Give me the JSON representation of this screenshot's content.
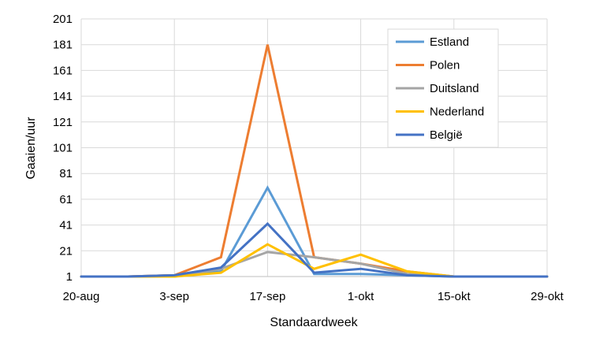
{
  "chart_data": {
    "type": "line",
    "title": "",
    "xlabel": "Standaardweek",
    "ylabel": "Gaaien/uur",
    "categories": [
      "20-aug",
      "27-aug",
      "3-sep",
      "10-sep",
      "17-sep",
      "24-sep",
      "1-okt",
      "8-okt",
      "15-okt",
      "22-okt",
      "29-okt"
    ],
    "x_tick_labels": [
      "20-aug",
      "3-sep",
      "17-sep",
      "1-okt",
      "15-okt",
      "29-okt"
    ],
    "y_ticks": [
      1,
      21,
      41,
      61,
      81,
      101,
      121,
      141,
      161,
      181,
      201
    ],
    "ylim": [
      1,
      201
    ],
    "grid": true,
    "legend_position": "top-right",
    "series": [
      {
        "name": "Estland",
        "color": "#5b9bd5",
        "values": [
          1,
          1,
          2,
          5,
          70,
          3,
          3,
          2,
          1,
          1,
          1
        ]
      },
      {
        "name": "Polen",
        "color": "#ed7d31",
        "values": [
          1,
          1,
          2,
          16,
          181,
          16,
          11,
          5,
          1,
          1,
          1
        ]
      },
      {
        "name": "Duitsland",
        "color": "#a5a5a5",
        "values": [
          1,
          1,
          1,
          7,
          20,
          16,
          11,
          3,
          1,
          1,
          1
        ]
      },
      {
        "name": "Nederland",
        "color": "#ffc000",
        "values": [
          1,
          1,
          1,
          4,
          26,
          7,
          18,
          5,
          1,
          1,
          1
        ]
      },
      {
        "name": "België",
        "color": "#4472c4",
        "values": [
          1,
          1,
          2,
          8,
          42,
          4,
          7,
          2,
          1,
          1,
          1
        ]
      }
    ]
  }
}
